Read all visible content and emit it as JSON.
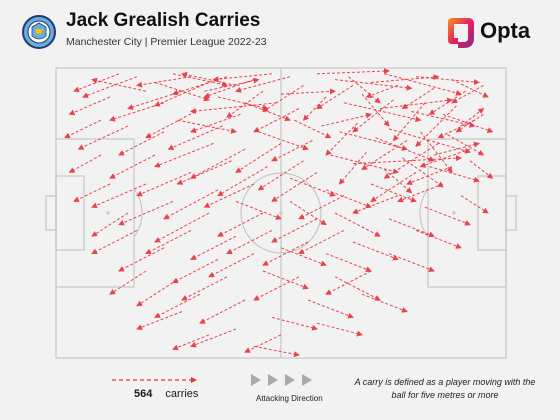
{
  "header": {
    "title": "Jack Grealish Carries",
    "subtitle": "Manchester City | Premier League 2022-23",
    "brand": "Opta",
    "crest_icon": "manchester-city-crest-icon"
  },
  "colors": {
    "carry": "#e8323c",
    "pitch_lines": "#c8c8c8",
    "pitch_bg": "#f2f2f2",
    "arrows": "#aaaaaa"
  },
  "legend": {
    "carries_count": "564",
    "carries_label": "carries",
    "attack_label": "Attacking Direction",
    "note": "A carry is defined as a player moving with the ball for five metres or more"
  },
  "chart_data": {
    "type": "scatter",
    "title": "Jack Grealish Carries",
    "subtitle": "Manchester City | Premier League 2022-23",
    "total_carries": 564,
    "pitch": {
      "x": [
        0,
        100
      ],
      "y": [
        0,
        100
      ],
      "attacking_direction": "left-to-right"
    },
    "carries": [
      [
        58,
        2,
        74,
        1
      ],
      [
        62,
        4,
        79,
        7
      ],
      [
        65,
        3,
        72,
        12
      ],
      [
        70,
        5,
        85,
        3
      ],
      [
        73,
        2,
        90,
        9
      ],
      [
        76,
        6,
        69,
        10
      ],
      [
        80,
        3,
        94,
        5
      ],
      [
        84,
        7,
        77,
        14
      ],
      [
        88,
        4,
        96,
        10
      ],
      [
        91,
        8,
        83,
        16
      ],
      [
        60,
        10,
        55,
        18
      ],
      [
        64,
        12,
        81,
        18
      ],
      [
        68,
        9,
        74,
        20
      ],
      [
        72,
        14,
        88,
        11
      ],
      [
        75,
        11,
        66,
        22
      ],
      [
        79,
        15,
        93,
        20
      ],
      [
        82,
        12,
        75,
        25
      ],
      [
        86,
        16,
        97,
        22
      ],
      [
        89,
        13,
        80,
        27
      ],
      [
        93,
        18,
        85,
        24
      ],
      [
        59,
        20,
        70,
        16
      ],
      [
        63,
        22,
        78,
        28
      ],
      [
        67,
        19,
        60,
        30
      ],
      [
        71,
        24,
        84,
        32
      ],
      [
        74,
        21,
        92,
        29
      ],
      [
        78,
        25,
        68,
        35
      ],
      [
        81,
        22,
        88,
        36
      ],
      [
        85,
        26,
        73,
        38
      ],
      [
        87,
        23,
        95,
        30
      ],
      [
        92,
        28,
        81,
        34
      ],
      [
        61,
        30,
        76,
        36
      ],
      [
        66,
        33,
        90,
        31
      ],
      [
        69,
        29,
        63,
        40
      ],
      [
        73,
        35,
        79,
        43
      ],
      [
        77,
        31,
        86,
        41
      ],
      [
        80,
        36,
        70,
        46
      ],
      [
        83,
        34,
        94,
        39
      ],
      [
        66,
        6,
        58,
        14
      ],
      [
        90,
        20,
        95,
        14
      ],
      [
        95,
        6,
        88,
        12
      ],
      [
        52,
        3,
        40,
        8
      ],
      [
        55,
        6,
        46,
        15
      ],
      [
        50,
        9,
        62,
        8
      ],
      [
        48,
        2,
        35,
        4
      ],
      [
        54,
        14,
        44,
        22
      ],
      [
        46,
        8,
        38,
        17
      ],
      [
        53,
        18,
        61,
        24
      ],
      [
        49,
        12,
        30,
        15
      ],
      [
        57,
        25,
        48,
        32
      ],
      [
        44,
        4,
        33,
        10
      ],
      [
        40,
        6,
        28,
        2
      ],
      [
        42,
        12,
        52,
        18
      ],
      [
        38,
        3,
        26,
        9
      ],
      [
        36,
        10,
        47,
        14
      ],
      [
        34,
        5,
        22,
        13
      ],
      [
        41,
        16,
        30,
        22
      ],
      [
        33,
        8,
        45,
        4
      ],
      [
        30,
        3,
        18,
        6
      ],
      [
        37,
        20,
        25,
        28
      ],
      [
        45,
        22,
        56,
        28
      ],
      [
        28,
        8,
        16,
        14
      ],
      [
        26,
        2,
        38,
        6
      ],
      [
        24,
        12,
        12,
        18
      ],
      [
        22,
        5,
        34,
        11
      ],
      [
        31,
        15,
        20,
        24
      ],
      [
        20,
        8,
        8,
        4
      ],
      [
        27,
        18,
        40,
        22
      ],
      [
        18,
        3,
        6,
        10
      ],
      [
        24,
        22,
        14,
        30
      ],
      [
        35,
        26,
        22,
        34
      ],
      [
        42,
        28,
        30,
        38
      ],
      [
        50,
        26,
        40,
        36
      ],
      [
        55,
        32,
        45,
        42
      ],
      [
        47,
        34,
        36,
        44
      ],
      [
        39,
        32,
        27,
        40
      ],
      [
        44,
        40,
        33,
        48
      ],
      [
        52,
        38,
        62,
        44
      ],
      [
        58,
        36,
        48,
        46
      ],
      [
        36,
        42,
        24,
        52
      ],
      [
        30,
        36,
        18,
        44
      ],
      [
        22,
        30,
        12,
        38
      ],
      [
        16,
        20,
        5,
        28
      ],
      [
        12,
        10,
        3,
        16
      ],
      [
        14,
        2,
        4,
        8
      ],
      [
        10,
        18,
        2,
        24
      ],
      [
        20,
        40,
        8,
        48
      ],
      [
        26,
        46,
        14,
        54
      ],
      [
        34,
        50,
        22,
        60
      ],
      [
        40,
        46,
        50,
        52
      ],
      [
        46,
        50,
        36,
        58
      ],
      [
        52,
        46,
        60,
        54
      ],
      [
        60,
        42,
        70,
        48
      ],
      [
        58,
        52,
        48,
        60
      ],
      [
        62,
        50,
        72,
        58
      ],
      [
        48,
        56,
        38,
        64
      ],
      [
        40,
        58,
        30,
        66
      ],
      [
        44,
        64,
        34,
        72
      ],
      [
        36,
        66,
        26,
        74
      ],
      [
        50,
        62,
        60,
        68
      ],
      [
        56,
        60,
        46,
        68
      ],
      [
        64,
        56,
        54,
        64
      ],
      [
        30,
        56,
        20,
        64
      ],
      [
        24,
        62,
        14,
        70
      ],
      [
        18,
        56,
        8,
        64
      ],
      [
        38,
        72,
        28,
        80
      ],
      [
        32,
        78,
        22,
        86
      ],
      [
        46,
        70,
        56,
        76
      ],
      [
        54,
        72,
        44,
        80
      ],
      [
        42,
        80,
        32,
        88
      ],
      [
        28,
        84,
        18,
        90
      ],
      [
        60,
        64,
        70,
        70
      ],
      [
        66,
        60,
        76,
        66
      ],
      [
        62,
        72,
        72,
        80
      ],
      [
        70,
        70,
        60,
        78
      ],
      [
        74,
        64,
        84,
        70
      ],
      [
        68,
        78,
        78,
        84
      ],
      [
        56,
        80,
        66,
        86
      ],
      [
        48,
        86,
        58,
        90
      ],
      [
        74,
        52,
        84,
        58
      ],
      [
        80,
        56,
        90,
        62
      ],
      [
        64,
        44,
        54,
        52
      ],
      [
        70,
        40,
        80,
        46
      ],
      [
        76,
        44,
        66,
        50
      ],
      [
        82,
        48,
        92,
        54
      ],
      [
        86,
        40,
        76,
        46
      ],
      [
        90,
        44,
        96,
        50
      ],
      [
        84,
        30,
        94,
        26
      ],
      [
        88,
        34,
        78,
        40
      ],
      [
        92,
        32,
        97,
        38
      ],
      [
        95,
        16,
        89,
        22
      ],
      [
        20,
        70,
        12,
        78
      ],
      [
        26,
        74,
        18,
        82
      ],
      [
        16,
        50,
        8,
        58
      ],
      [
        12,
        40,
        4,
        46
      ],
      [
        10,
        30,
        3,
        36
      ],
      [
        40,
        90,
        30,
        96
      ],
      [
        50,
        92,
        42,
        98
      ],
      [
        58,
        88,
        68,
        92
      ],
      [
        34,
        92,
        26,
        97
      ],
      [
        44,
        96,
        54,
        99
      ]
    ]
  }
}
